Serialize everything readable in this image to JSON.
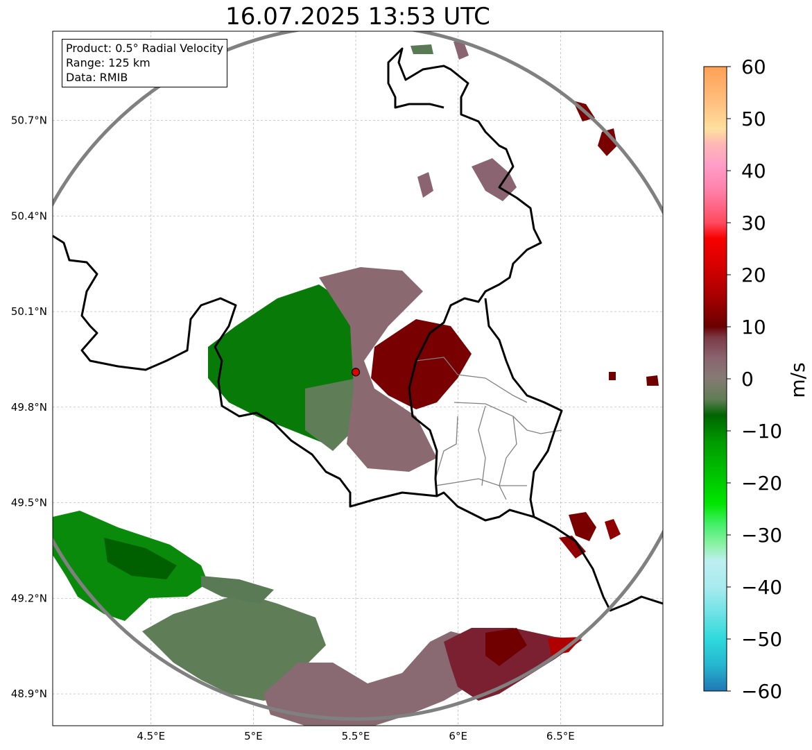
{
  "title": "16.07.2025 13:53 UTC",
  "info": {
    "product": "Product: 0.5° Radial Velocity",
    "range": "Range: 125 km",
    "data": "Data: RMIB"
  },
  "map": {
    "lon_range": [
      4.02,
      7.0
    ],
    "lat_range": [
      48.8,
      50.98
    ],
    "x_ticks": [
      "4.5°E",
      "5°E",
      "5.5°E",
      "6°E",
      "6.5°E"
    ],
    "x_tick_values": [
      4.5,
      5.0,
      5.5,
      6.0,
      6.5
    ],
    "y_ticks": [
      "48.9°N",
      "49.2°N",
      "49.5°N",
      "49.8°N",
      "50.1°N",
      "50.4°N",
      "50.7°N"
    ],
    "y_tick_values": [
      48.9,
      49.2,
      49.5,
      49.8,
      50.1,
      50.4,
      50.7
    ],
    "radar_site": {
      "lon": 5.5,
      "lat": 49.91
    },
    "range_ring_color": "#808080",
    "border_color": "#000000",
    "province_border_color": "#808080"
  },
  "colorbar": {
    "unit": "m/s",
    "min": -60,
    "max": 60,
    "tick_values": [
      60,
      50,
      40,
      30,
      20,
      10,
      0,
      -10,
      -20,
      -30,
      -40,
      -50,
      -60
    ],
    "tick_labels": [
      "60",
      "50",
      "40",
      "30",
      "20",
      "10",
      "0",
      "−10",
      "−20",
      "−30",
      "−40",
      "−50",
      "−60"
    ],
    "stops": [
      [
        "#1f77b4",
        -60
      ],
      [
        "#26b6d0",
        -55
      ],
      [
        "#2ed9dc",
        -50
      ],
      [
        "#6fe2e6",
        -45
      ],
      [
        "#a8ebee",
        -40
      ],
      [
        "#bdeff0",
        -35
      ],
      [
        "#8ef2a8",
        -32
      ],
      [
        "#45f06a",
        -28
      ],
      [
        "#00e600",
        -24
      ],
      [
        "#00c000",
        -18
      ],
      [
        "#009a00",
        -12
      ],
      [
        "#006400",
        -7
      ],
      [
        "#5f7d55",
        -4
      ],
      [
        "#857b73",
        0
      ],
      [
        "#8a6470",
        4
      ],
      [
        "#7a3a45",
        8
      ],
      [
        "#6a0000",
        10
      ],
      [
        "#a80000",
        16
      ],
      [
        "#d80000",
        22
      ],
      [
        "#f70000",
        27
      ],
      [
        "#ff4a5e",
        30
      ],
      [
        "#ff7fa8",
        36
      ],
      [
        "#ff9dc8",
        41
      ],
      [
        "#ffb6b6",
        45
      ],
      [
        "#ffe09e",
        48
      ],
      [
        "#ffc080",
        53
      ],
      [
        "#ffa055",
        60
      ]
    ]
  },
  "echo_colors": {
    "approaching": "#007000",
    "light_approaching": "#5a7a55",
    "neutral": "#8a6a70",
    "receding": "#700000",
    "strong_receding": "#c00000"
  }
}
